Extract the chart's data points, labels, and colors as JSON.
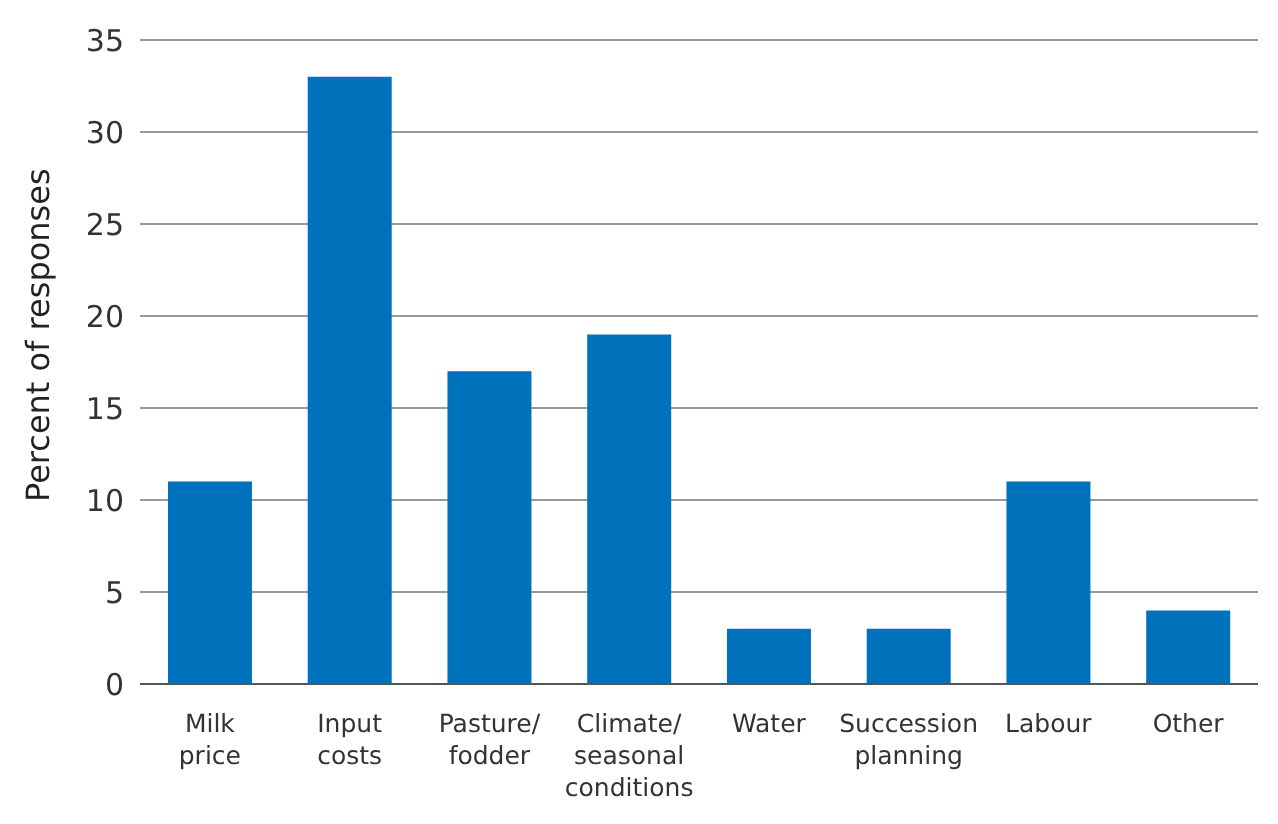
{
  "chart_data": {
    "type": "bar",
    "ylabel": "Percent of responses",
    "categories": [
      "Milk price",
      "Input costs",
      "Pasture/fodder",
      "Climate/seasonal conditions",
      "Water",
      "Succession planning",
      "Labour",
      "Other"
    ],
    "values": [
      11,
      33,
      17,
      19,
      3,
      3,
      11,
      4
    ],
    "color": "#0072bc",
    "ylim": [
      0,
      35
    ],
    "yticks": [
      0,
      5,
      10,
      15,
      20,
      25,
      30,
      35
    ],
    "grid": "y"
  }
}
